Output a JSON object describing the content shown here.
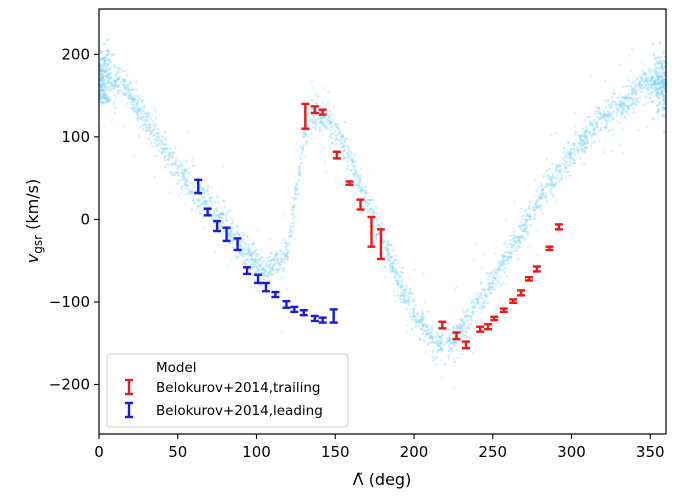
{
  "chart_data": {
    "type": "scatter",
    "xlabel": "Λ̃ (deg)",
    "ylabel_main": "v",
    "ylabel_sub": "gsr",
    "ylabel_unit": " (km/s)",
    "xlim": [
      0,
      360
    ],
    "ylim": [
      -260,
      255
    ],
    "xticks": [
      0,
      50,
      100,
      150,
      200,
      250,
      300,
      350
    ],
    "yticks": [
      -200,
      -100,
      0,
      100,
      200
    ],
    "grid": false,
    "legend_position": "lower-left",
    "colors": {
      "model": "#7fd3f5",
      "trailing": "#e8191b",
      "leading": "#1a1adb"
    },
    "model_curve": {
      "x": [
        0,
        15,
        30,
        45,
        60,
        75,
        90,
        105,
        120,
        130,
        137,
        145,
        155,
        165,
        175,
        185,
        195,
        205,
        215,
        225,
        235,
        245,
        255,
        265,
        275,
        285,
        295,
        305,
        315,
        325,
        335,
        345,
        360
      ],
      "y": [
        170,
        168,
        120,
        75,
        35,
        5,
        -30,
        -65,
        -40,
        100,
        130,
        120,
        95,
        45,
        0,
        -50,
        -95,
        -125,
        -150,
        -145,
        -120,
        -90,
        -60,
        -25,
        10,
        40,
        65,
        90,
        115,
        130,
        140,
        165,
        165
      ]
    },
    "series": [
      {
        "name": "Belokurov+2014,trailing",
        "x": [
          131,
          137,
          142,
          151,
          159,
          166,
          173,
          179,
          218,
          227,
          233,
          242,
          247,
          251,
          257,
          263,
          268,
          273,
          278,
          286,
          292
        ],
        "y": [
          125,
          133,
          130,
          78,
          44,
          18,
          -15,
          -30,
          -128,
          -141,
          -152,
          -133,
          -130,
          -120,
          -110,
          -99,
          -89,
          -72,
          -60,
          -35,
          -9
        ],
        "yerr": [
          15,
          4,
          3,
          4,
          2,
          6,
          18,
          18,
          4,
          4,
          4,
          3,
          3,
          2,
          2,
          2,
          3,
          2,
          3,
          2,
          3
        ]
      },
      {
        "name": "Belokurov+2014,leading",
        "x": [
          63,
          69,
          75,
          81,
          88,
          94,
          101,
          106,
          112,
          119,
          124,
          130,
          137,
          142,
          149
        ],
        "y": [
          40,
          9,
          -8,
          -18,
          -30,
          -62,
          -72,
          -82,
          -91,
          -103,
          -109,
          -113,
          -120,
          -122,
          -117
        ],
        "yerr": [
          8,
          4,
          6,
          8,
          7,
          4,
          5,
          5,
          3,
          4,
          3,
          3,
          3,
          3,
          8
        ]
      }
    ],
    "legend": {
      "model": "Model",
      "trailing": "Belokurov+2014,trailing",
      "leading": "Belokurov+2014,leading"
    }
  }
}
